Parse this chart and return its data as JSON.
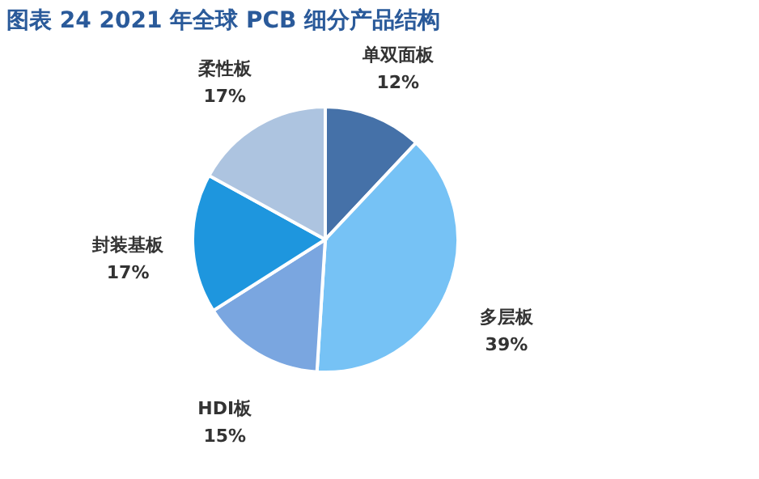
{
  "chart_data": {
    "type": "pie",
    "title": "图表 24 2021 年全球 PCB 细分产品结构",
    "categories": [
      "单双面板",
      "多层板",
      "HDI板",
      "封装基板",
      "柔性板"
    ],
    "values": [
      12,
      39,
      15,
      17,
      17
    ],
    "value_labels": [
      "12%",
      "39%",
      "15%",
      "17%",
      "17%"
    ],
    "colors": [
      "#4571a8",
      "#76c2f5",
      "#7aa6e0",
      "#1e96de",
      "#adc4e0"
    ],
    "legend": false
  }
}
